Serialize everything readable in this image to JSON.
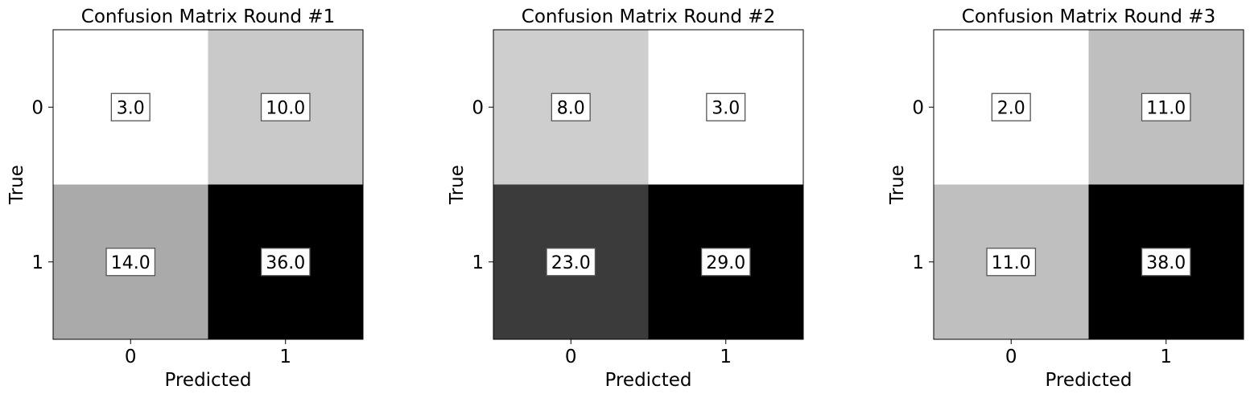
{
  "chart_data": [
    {
      "type": "heatmap",
      "title": "Confusion Matrix Round #1",
      "xlabel": "Predicted",
      "ylabel": "True",
      "x_categories": [
        "0",
        "1"
      ],
      "y_categories": [
        "0",
        "1"
      ],
      "values": [
        [
          3.0,
          10.0
        ],
        [
          14.0,
          36.0
        ]
      ],
      "value_labels": [
        [
          "3.0",
          "10.0"
        ],
        [
          "14.0",
          "36.0"
        ]
      ],
      "colormap": "grayscale (white = low, black = high)"
    },
    {
      "type": "heatmap",
      "title": "Confusion Matrix Round #2",
      "xlabel": "Predicted",
      "ylabel": "True",
      "x_categories": [
        "0",
        "1"
      ],
      "y_categories": [
        "0",
        "1"
      ],
      "values": [
        [
          8.0,
          3.0
        ],
        [
          23.0,
          29.0
        ]
      ],
      "value_labels": [
        [
          "8.0",
          "3.0"
        ],
        [
          "23.0",
          "29.0"
        ]
      ],
      "colormap": "grayscale (white = low, black = high)"
    },
    {
      "type": "heatmap",
      "title": "Confusion Matrix Round #3",
      "xlabel": "Predicted",
      "ylabel": "True",
      "x_categories": [
        "0",
        "1"
      ],
      "y_categories": [
        "0",
        "1"
      ],
      "values": [
        [
          2.0,
          11.0
        ],
        [
          11.0,
          38.0
        ]
      ],
      "value_labels": [
        [
          "2.0",
          "11.0"
        ],
        [
          "11.0",
          "38.0"
        ]
      ],
      "colormap": "grayscale (white = low, black = high)"
    }
  ]
}
